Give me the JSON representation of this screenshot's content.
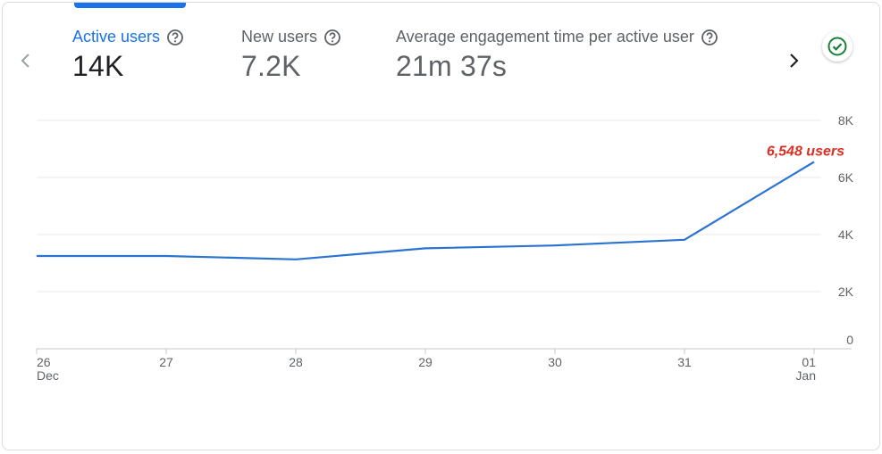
{
  "metrics": [
    {
      "label": "Active users",
      "value": "14K",
      "active": true
    },
    {
      "label": "New users",
      "value": "7.2K",
      "active": false
    },
    {
      "label": "Average engagement time per active user",
      "value": "21m 37s",
      "active": false
    }
  ],
  "icons": {
    "prev": "chevron-left-icon",
    "next": "chevron-right-icon",
    "help": "help-circle-icon",
    "status": "check-circle-icon"
  },
  "colors": {
    "accent": "#1a73e8",
    "line": "#2a73d0",
    "annotation": "#d93025",
    "status": "#188038"
  },
  "chart_data": {
    "type": "line",
    "x": [
      "26\nDec",
      "27",
      "28",
      "29",
      "30",
      "31",
      "01\nJan"
    ],
    "x_ticks": [
      {
        "day": "26",
        "month": "Dec"
      },
      {
        "day": "27",
        "month": ""
      },
      {
        "day": "28",
        "month": ""
      },
      {
        "day": "29",
        "month": ""
      },
      {
        "day": "30",
        "month": ""
      },
      {
        "day": "31",
        "month": ""
      },
      {
        "day": "01",
        "month": "Jan"
      }
    ],
    "series": [
      {
        "values": [
          3250,
          3250,
          3130,
          3520,
          3620,
          3820,
          6548
        ]
      }
    ],
    "ylim": [
      0,
      8000
    ],
    "y_ticks": [
      0,
      2000,
      4000,
      6000,
      8000
    ],
    "y_tick_labels": [
      "0",
      "2K",
      "4K",
      "6K",
      "8K"
    ],
    "y_axis_side": "right",
    "grid": true,
    "annotation": {
      "text": "6,548 users",
      "at_index": 6
    }
  }
}
